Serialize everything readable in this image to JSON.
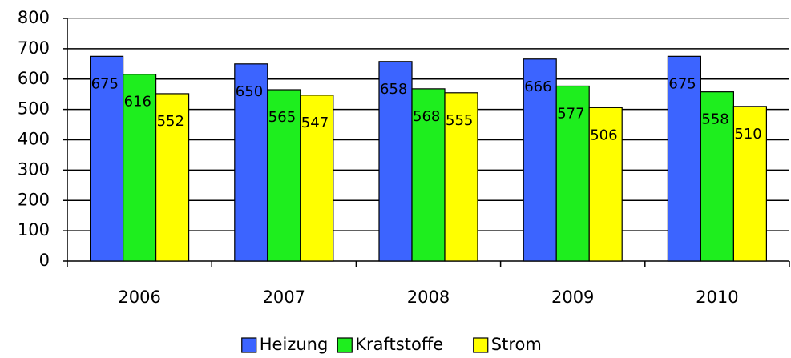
{
  "chart_data": {
    "type": "bar",
    "categories": [
      "2006",
      "2007",
      "2008",
      "2009",
      "2010"
    ],
    "series": [
      {
        "name": "Heizung",
        "color": "#3c64ff",
        "values": [
          675,
          650,
          658,
          666,
          675
        ]
      },
      {
        "name": "Kraftstoffe",
        "color": "#1eee1e",
        "values": [
          616,
          565,
          568,
          577,
          558
        ]
      },
      {
        "name": "Strom",
        "color": "#ffff00",
        "values": [
          552,
          547,
          555,
          506,
          510
        ]
      }
    ],
    "ylim": [
      0,
      800
    ],
    "yticks": [
      0,
      100,
      200,
      300,
      400,
      500,
      600,
      700,
      800
    ],
    "grid": true,
    "legend": "bottom"
  }
}
